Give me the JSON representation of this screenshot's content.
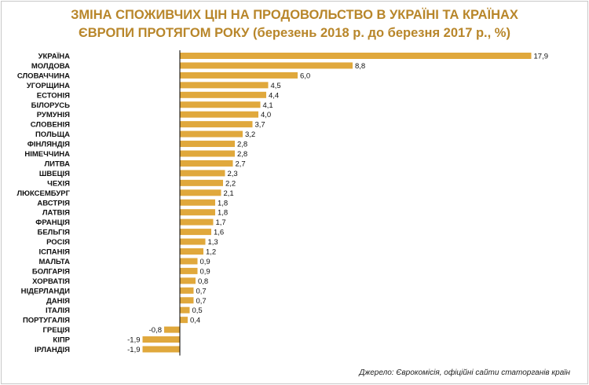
{
  "header": {
    "title_line1": "ЗМІНА СПОЖИВЧИХ ЦІН НА ПРОДОВОЛЬСТВО  В УКРАЇНІ ТА КРАЇНАХ",
    "title_line2": "ЄВРОПИ ПРОТЯГОМ РОКУ (березень 2018 р. до березня 2017 р., %)"
  },
  "footer": {
    "source": "Джерело: Єврокомісія, офіційні сайти статорганів країн"
  },
  "colors": {
    "bar": "#e0a83c",
    "title": "#b8862a",
    "axis": "#000000"
  },
  "chart_data": {
    "type": "bar",
    "orientation": "horizontal",
    "title": "ЗМІНА СПОЖИВЧИХ ЦІН НА ПРОДОВОЛЬСТВО  В УКРАЇНІ ТА КРАЇНАХ ЄВРОПИ ПРОТЯГОМ РОКУ (березень 2018 р. до березня 2017 р., %)",
    "categories": [
      "УКРАЇНА",
      "МОЛДОВА",
      "СЛОВАЧЧИНА",
      "УГОРЩИНА",
      "ЕСТОНІЯ",
      "БІЛОРУСЬ",
      "РУМУНІЯ",
      "СЛОВЕНІЯ",
      "ПОЛЬЩА",
      "ФІНЛЯНДІЯ",
      "НІМЕЧЧИНА",
      "ЛИТВА",
      "ШВЕЦІЯ",
      "ЧЕХІЯ",
      "ЛЮКСЕМБУРГ",
      "АВСТРІЯ",
      "ЛАТВІЯ",
      "ФРАНЦІЯ",
      "БЕЛЬГІЯ",
      "РОСІЯ",
      "ІСПАНІЯ",
      "МАЛЬТА",
      "БОЛГАРІЯ",
      "ХОРВАТІЯ",
      "НІДЕРЛАНДИ",
      "ДАНІЯ",
      "ІТАЛІЯ",
      "ПОРТУГАЛІЯ",
      "ГРЕЦІЯ",
      "КІПР",
      "ІРЛАНДІЯ"
    ],
    "values": [
      17.9,
      8.8,
      6.0,
      4.5,
      4.4,
      4.1,
      4.0,
      3.7,
      3.2,
      2.8,
      2.8,
      2.7,
      2.3,
      2.2,
      2.1,
      1.8,
      1.8,
      1.7,
      1.6,
      1.3,
      1.2,
      0.9,
      0.9,
      0.8,
      0.7,
      0.7,
      0.5,
      0.4,
      -0.8,
      -1.9,
      -1.9
    ],
    "value_labels": [
      "17,9",
      "8,8",
      "6,0",
      "4,5",
      "4,4",
      "4,1",
      "4,0",
      "3,7",
      "3,2",
      "2,8",
      "2,8",
      "2,7",
      "2,3",
      "2,2",
      "2,1",
      "1,8",
      "1,8",
      "1,7",
      "1,6",
      "1,3",
      "1,2",
      "0,9",
      "0,9",
      "0,8",
      "0,7",
      "0,7",
      "0,5",
      "0,4",
      "-0,8",
      "-1,9",
      "-1,9"
    ],
    "xlim": [
      -1.9,
      17.9
    ],
    "grid": false,
    "legend": "none"
  }
}
